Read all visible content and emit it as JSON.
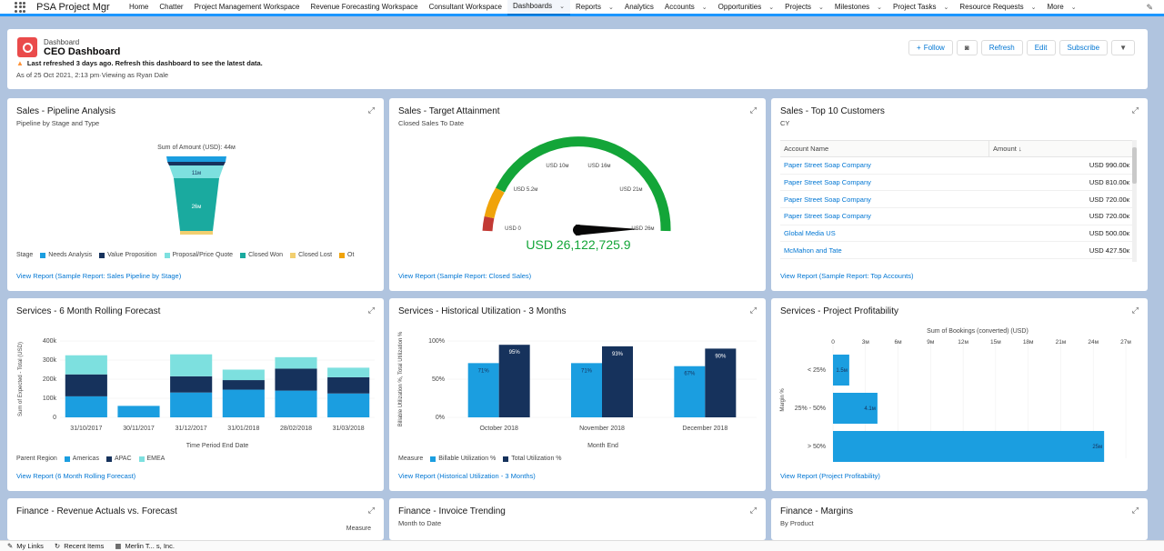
{
  "nav": {
    "app_name": "PSA Project Mgr",
    "items": [
      {
        "label": "Home",
        "chev": false,
        "active": false
      },
      {
        "label": "Chatter",
        "chev": false,
        "active": false
      },
      {
        "label": "Project Management Workspace",
        "chev": false,
        "active": false
      },
      {
        "label": "Revenue Forecasting Workspace",
        "chev": false,
        "active": false
      },
      {
        "label": "Consultant Workspace",
        "chev": false,
        "active": false
      },
      {
        "label": "Dashboards",
        "chev": true,
        "active": true
      },
      {
        "label": "Reports",
        "chev": true,
        "active": false
      },
      {
        "label": "Analytics",
        "chev": false,
        "active": false
      },
      {
        "label": "Accounts",
        "chev": true,
        "active": false
      },
      {
        "label": "Opportunities",
        "chev": true,
        "active": false
      },
      {
        "label": "Projects",
        "chev": true,
        "active": false
      },
      {
        "label": "Milestones",
        "chev": true,
        "active": false
      },
      {
        "label": "Project Tasks",
        "chev": true,
        "active": false
      },
      {
        "label": "Resource Requests",
        "chev": true,
        "active": false
      },
      {
        "label": "More",
        "chev": true,
        "active": false
      }
    ]
  },
  "header": {
    "subtitle": "Dashboard",
    "title": "CEO Dashboard",
    "warning": "Last refreshed 3 days ago. Refresh this dashboard to see the latest data.",
    "as_of": "As of 25 Oct 2021, 2:13 pm·Viewing as Ryan Dale",
    "follow": "Follow",
    "refresh": "Refresh",
    "edit": "Edit",
    "subscribe": "Subscribe"
  },
  "colors": {
    "blue": "#1b9ee0",
    "navy": "#16325c",
    "teal_light": "#7de0df",
    "teal": "#1aaa9f",
    "gold": "#f2cf70",
    "orange": "#ff9a3c",
    "green": "#13a538",
    "red": "#c23934"
  },
  "panels": {
    "pipeline": {
      "title": "Sales - Pipeline Analysis",
      "subtitle": "Pipeline by Stage and Type",
      "sum_label": "Sum of Amount (USD): 44м",
      "seg_labels": [
        "11м",
        "26м"
      ],
      "legend_label": "Stage",
      "legend": [
        {
          "name": "Needs Analysis",
          "color": "#1b9ee0"
        },
        {
          "name": "Value Proposition",
          "color": "#16325c"
        },
        {
          "name": "Proposal/Price Quote",
          "color": "#7de0df"
        },
        {
          "name": "Closed Won",
          "color": "#1aaa9f"
        },
        {
          "name": "Closed Lost",
          "color": "#f2cf70"
        },
        {
          "name": "Ot",
          "color": "#f0a30a"
        }
      ],
      "link": "View Report (Sample Report: Sales Pipeline by Stage)"
    },
    "target": {
      "title": "Sales - Target Attainment",
      "subtitle": "Closed Sales To Date",
      "value": "USD 26,122,725.9",
      "ticks": [
        "USD 0",
        "USD 5.2м",
        "USD 10м",
        "USD 16м",
        "USD 21м",
        "USD 26м"
      ],
      "link": "View Report (Sample Report: Closed Sales)"
    },
    "customers": {
      "title": "Sales - Top 10 Customers",
      "subtitle": "CY",
      "col_account": "Account Name",
      "col_amount": "Amount",
      "sort_icon": "arrow-down-icon",
      "rows": [
        {
          "name": "Paper Street Soap Company",
          "amount": "USD 990.00к"
        },
        {
          "name": "Paper Street Soap Company",
          "amount": "USD 810.00к"
        },
        {
          "name": "Paper Street Soap Company",
          "amount": "USD 720.00к"
        },
        {
          "name": "Paper Street Soap Company",
          "amount": "USD 720.00к"
        },
        {
          "name": "Global Media US",
          "amount": "USD 500.00к"
        },
        {
          "name": "McMahon and Tate",
          "amount": "USD 427.50к"
        }
      ],
      "link": "View Report (Sample Report: Top Accounts)"
    },
    "forecast": {
      "title": "Services - 6 Month Rolling Forecast",
      "legend_label": "Parent Region",
      "link": "View Report (6 Month Rolling Forecast)"
    },
    "utilization": {
      "title": "Services - Historical Utilization - 3 Months",
      "legend_label": "Measure",
      "link": "View Report (Historical Utilization - 3 Months)"
    },
    "profitability": {
      "title": "Services - Project Profitability",
      "link": "View Report (Project Profitability)"
    },
    "revenue": {
      "title": "Finance - Revenue Actuals vs. Forecast",
      "measure": "Measure"
    },
    "invoice": {
      "title": "Finance - Invoice Trending",
      "subtitle": "Month to Date"
    },
    "margins": {
      "title": "Finance - Margins",
      "subtitle": "By Product"
    }
  },
  "chart_data": [
    {
      "type": "bar",
      "stacked": true,
      "title": "Services - 6 Month Rolling Forecast",
      "categories": [
        "31/10/2017",
        "30/11/2017",
        "31/12/2017",
        "31/01/2018",
        "28/02/2018",
        "31/03/2018"
      ],
      "series": [
        {
          "name": "Americas",
          "color": "#1b9ee0",
          "values": [
            110,
            60,
            130,
            145,
            140,
            125
          ]
        },
        {
          "name": "APAC",
          "color": "#16325c",
          "values": [
            115,
            0,
            85,
            50,
            115,
            85
          ]
        },
        {
          "name": "EMEA",
          "color": "#7de0df",
          "values": [
            100,
            0,
            115,
            55,
            60,
            50
          ]
        }
      ],
      "xlabel": "Time Period End Date",
      "ylabel": "Sum of Expected - Total (USD)",
      "yticks": [
        "0",
        "100k",
        "200k",
        "300k",
        "400k"
      ],
      "ylim": [
        0,
        400
      ]
    },
    {
      "type": "bar",
      "title": "Services - Historical Utilization - 3 Months",
      "categories": [
        "October 2018",
        "November 2018",
        "December 2018"
      ],
      "series": [
        {
          "name": "Billable Utilization %",
          "color": "#1b9ee0",
          "values": [
            71,
            71,
            67
          ],
          "labels": [
            "71%",
            "71%",
            "67%"
          ]
        },
        {
          "name": "Total Utilization %",
          "color": "#16325c",
          "values": [
            95,
            93,
            90
          ],
          "labels": [
            "95%",
            "93%",
            "90%"
          ]
        }
      ],
      "xlabel": "Month End",
      "ylabel": "Billable Utilization %, Total Utilization %",
      "yticks": [
        "0%",
        "50%",
        "100%"
      ],
      "ylim": [
        0,
        100
      ]
    },
    {
      "type": "bar",
      "orientation": "horizontal",
      "title": "Services - Project Profitability",
      "categories": [
        "< 25%",
        "25% - 50%",
        "> 50%"
      ],
      "values": [
        1.5,
        4.1,
        25
      ],
      "labels": [
        "1.5м",
        "4.1м",
        "25м"
      ],
      "xlabel": "Sum of Bookings (converted) (USD)",
      "ylabel": "Margin %",
      "xticks": [
        "0",
        "3м",
        "6м",
        "9м",
        "12м",
        "15м",
        "18м",
        "21м",
        "24м",
        "27м"
      ],
      "xlim": [
        0,
        27
      ]
    }
  ],
  "bottombar": {
    "mylinks": "My Links",
    "recent": "Recent Items",
    "merlin": "Merlin T... s, Inc."
  }
}
